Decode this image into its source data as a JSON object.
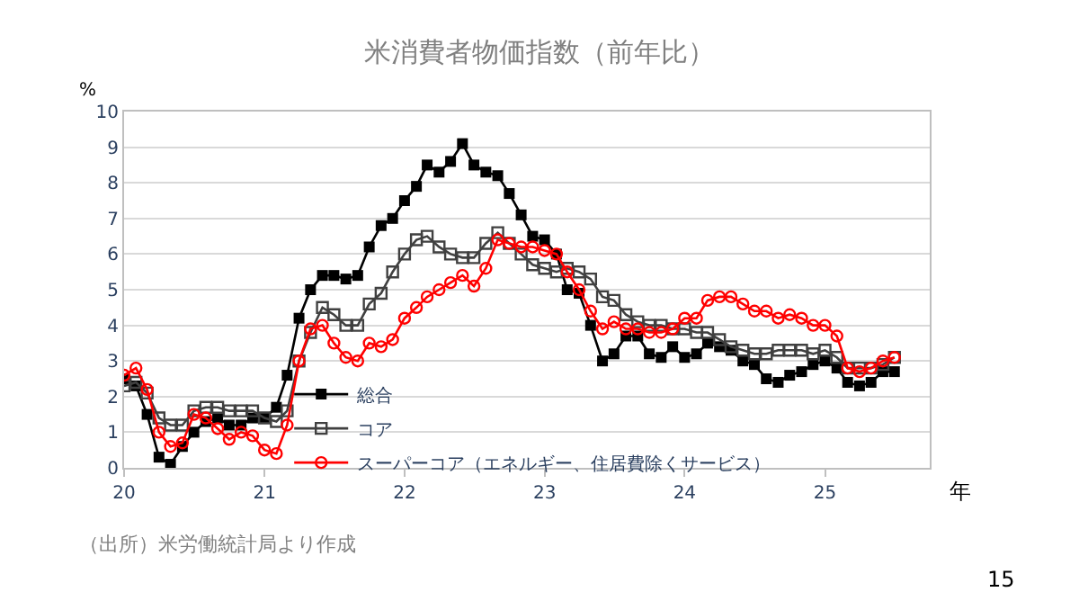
{
  "chart_data": {
    "type": "line",
    "title": "米消費者物価指数（前年比）",
    "xlabel": "年",
    "ylabel": "%",
    "x": [
      "2020-01",
      "2020-02",
      "2020-03",
      "2020-04",
      "2020-05",
      "2020-06",
      "2020-07",
      "2020-08",
      "2020-09",
      "2020-10",
      "2020-11",
      "2020-12",
      "2021-01",
      "2021-02",
      "2021-03",
      "2021-04",
      "2021-05",
      "2021-06",
      "2021-07",
      "2021-08",
      "2021-09",
      "2021-10",
      "2021-11",
      "2021-12",
      "2022-01",
      "2022-02",
      "2022-03",
      "2022-04",
      "2022-05",
      "2022-06",
      "2022-07",
      "2022-08",
      "2022-09",
      "2022-10",
      "2022-11",
      "2022-12",
      "2023-01",
      "2023-02",
      "2023-03",
      "2023-04",
      "2023-05",
      "2023-06",
      "2023-07",
      "2023-08",
      "2023-09",
      "2023-10",
      "2023-11",
      "2023-12",
      "2024-01",
      "2024-02",
      "2024-03",
      "2024-04",
      "2024-05",
      "2024-06",
      "2024-07",
      "2024-08",
      "2024-09",
      "2024-10",
      "2024-11",
      "2024-12",
      "2025-01",
      "2025-02",
      "2025-03",
      "2025-04",
      "2025-05",
      "2025-06",
      "2025-07"
    ],
    "series": [
      {
        "name": "総合",
        "color": "#000000",
        "marker": "square",
        "values": [
          2.5,
          2.3,
          1.5,
          0.3,
          0.1,
          0.6,
          1.0,
          1.3,
          1.4,
          1.2,
          1.2,
          1.4,
          1.4,
          1.7,
          2.6,
          4.2,
          5.0,
          5.4,
          5.4,
          5.3,
          5.4,
          6.2,
          6.8,
          7.0,
          7.5,
          7.9,
          8.5,
          8.3,
          8.6,
          9.1,
          8.5,
          8.3,
          8.2,
          7.7,
          7.1,
          6.5,
          6.4,
          6.0,
          5.0,
          4.9,
          4.0,
          3.0,
          3.2,
          3.7,
          3.7,
          3.2,
          3.1,
          3.4,
          3.1,
          3.2,
          3.5,
          3.4,
          3.3,
          3.0,
          2.9,
          2.5,
          2.4,
          2.6,
          2.7,
          2.9,
          3.0,
          2.8,
          2.4,
          2.3,
          2.4,
          2.7,
          2.7
        ]
      },
      {
        "name": "コア",
        "color": "#404040",
        "marker": "square-open",
        "values": [
          2.3,
          2.4,
          2.1,
          1.4,
          1.2,
          1.2,
          1.6,
          1.7,
          1.7,
          1.6,
          1.6,
          1.6,
          1.4,
          1.3,
          1.6,
          3.0,
          3.8,
          4.5,
          4.3,
          4.0,
          4.0,
          4.6,
          4.9,
          5.5,
          6.0,
          6.4,
          6.5,
          6.2,
          6.0,
          5.9,
          5.9,
          6.3,
          6.6,
          6.3,
          6.0,
          5.7,
          5.6,
          5.5,
          5.6,
          5.5,
          5.3,
          4.8,
          4.7,
          4.3,
          4.1,
          4.0,
          4.0,
          3.9,
          3.9,
          3.8,
          3.8,
          3.6,
          3.4,
          3.3,
          3.2,
          3.2,
          3.3,
          3.3,
          3.3,
          3.2,
          3.3,
          3.1,
          2.8,
          2.8,
          2.8,
          2.9,
          3.1
        ]
      },
      {
        "name": "スーパーコア（エネルギー、住居費除くサービス）",
        "color": "#ff0000",
        "marker": "circle-open",
        "values": [
          2.6,
          2.8,
          2.2,
          1.0,
          0.6,
          0.7,
          1.5,
          1.4,
          1.1,
          0.8,
          1.0,
          0.9,
          0.5,
          0.4,
          1.2,
          3.0,
          3.9,
          4.0,
          3.5,
          3.1,
          3.0,
          3.5,
          3.4,
          3.6,
          4.2,
          4.5,
          4.8,
          5.0,
          5.2,
          5.4,
          5.1,
          5.6,
          6.4,
          6.3,
          6.2,
          6.2,
          6.1,
          6.0,
          5.5,
          5.0,
          4.4,
          3.9,
          4.1,
          3.9,
          3.9,
          3.8,
          3.8,
          3.9,
          4.2,
          4.2,
          4.7,
          4.8,
          4.8,
          4.6,
          4.4,
          4.4,
          4.2,
          4.3,
          4.2,
          4.0,
          4.0,
          3.7,
          2.8,
          2.7,
          2.8,
          3.0,
          3.1
        ]
      }
    ],
    "xlim": [
      "2020-01",
      "2025-10"
    ],
    "xticks": [
      {
        "value": "2020-01",
        "label": "20"
      },
      {
        "value": "2021-01",
        "label": "21"
      },
      {
        "value": "2022-01",
        "label": "22"
      },
      {
        "value": "2023-01",
        "label": "23"
      },
      {
        "value": "2024-01",
        "label": "24"
      },
      {
        "value": "2025-01",
        "label": "25"
      }
    ],
    "ylim": [
      0,
      10
    ],
    "yticks": [
      0,
      1,
      2,
      3,
      4,
      5,
      6,
      7,
      8,
      9,
      10
    ],
    "grid": "y",
    "legend": "bottom left",
    "line_style": "solid",
    "annotations": [
      "（出所）米労働統計局より作成",
      "15"
    ]
  }
}
